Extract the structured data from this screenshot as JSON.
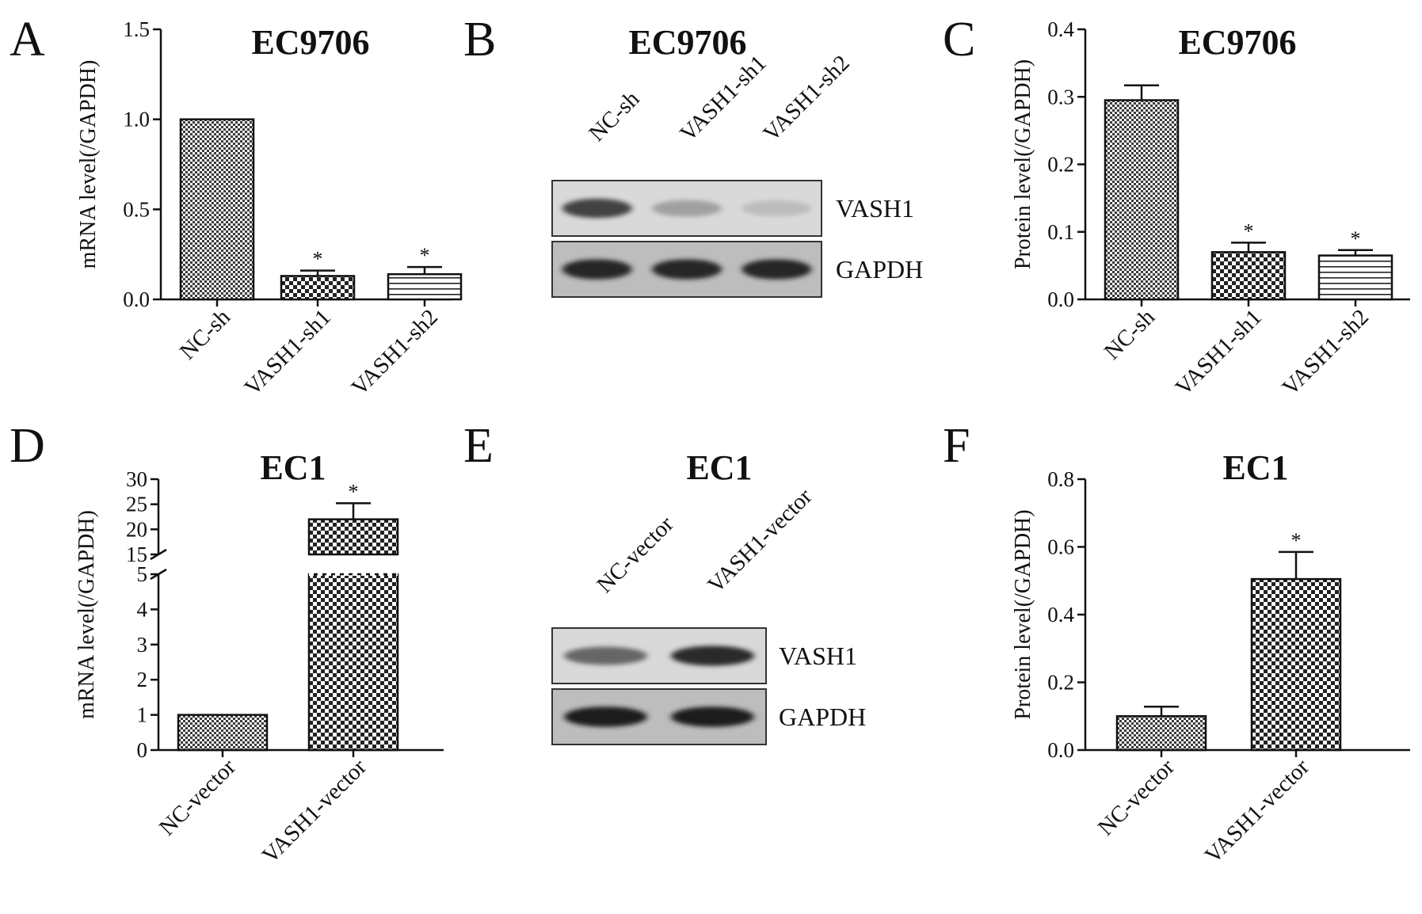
{
  "figure_panels": [
    {
      "letter": "A",
      "title": "EC9706"
    },
    {
      "letter": "B",
      "title": "EC9706"
    },
    {
      "letter": "C",
      "title": "EC9706"
    },
    {
      "letter": "D",
      "title": "EC1"
    },
    {
      "letter": "E",
      "title": "EC1"
    },
    {
      "letter": "F",
      "title": "EC1"
    }
  ],
  "chart_data": [
    {
      "panel": "A",
      "type": "bar",
      "title": "EC9706",
      "ylabel": "mRNA level(/GAPDH)",
      "xlabel": "",
      "categories": [
        "NC-sh",
        "VASH1-sh1",
        "VASH1-sh2"
      ],
      "values": [
        1.0,
        0.13,
        0.14
      ],
      "errors": [
        0,
        0.03,
        0.04
      ],
      "significance": [
        "",
        "*",
        "*"
      ],
      "patterns": [
        "dense-check",
        "check",
        "h-lines"
      ],
      "ylim": [
        0,
        1.5
      ],
      "yticks": [
        0.0,
        0.5,
        1.0,
        1.5
      ],
      "ytick_labels": [
        "0.0",
        "0.5",
        "1.0",
        "1.5"
      ],
      "grid": false
    },
    {
      "panel": "C",
      "type": "bar",
      "title": "EC9706",
      "ylabel": "Protein level(/GAPDH)",
      "xlabel": "",
      "categories": [
        "NC-sh",
        "VASH1-sh1",
        "VASH1-sh2"
      ],
      "values": [
        0.295,
        0.07,
        0.065
      ],
      "errors": [
        0.022,
        0.014,
        0.008
      ],
      "significance": [
        "",
        "*",
        "*"
      ],
      "patterns": [
        "dense-check",
        "check",
        "h-lines"
      ],
      "ylim": [
        0,
        0.4
      ],
      "yticks": [
        0.0,
        0.1,
        0.2,
        0.3,
        0.4
      ],
      "ytick_labels": [
        "0.0",
        "0.1",
        "0.2",
        "0.3",
        "0.4"
      ],
      "grid": false
    },
    {
      "panel": "D",
      "type": "bar",
      "title": "EC1",
      "ylabel": "mRNA level(/GAPDH)",
      "xlabel": "",
      "categories": [
        "NC-vector",
        "VASH1-vector"
      ],
      "values": [
        1.0,
        22.0
      ],
      "errors": [
        0,
        3.2
      ],
      "significance": [
        "",
        "*"
      ],
      "patterns": [
        "dense-check",
        "check"
      ],
      "broken_axis": {
        "lower": {
          "ylim": [
            0,
            5
          ],
          "yticks": [
            0,
            1,
            2,
            3,
            4,
            5
          ],
          "ytick_labels": [
            "0",
            "1",
            "2",
            "3",
            "4",
            "5"
          ]
        },
        "upper": {
          "ylim": [
            15,
            30
          ],
          "yticks": [
            15,
            20,
            25,
            30
          ],
          "ytick_labels": [
            "15",
            "20",
            "25",
            "30"
          ]
        }
      },
      "grid": false
    },
    {
      "panel": "F",
      "type": "bar",
      "title": "EC1",
      "ylabel": "Protein level(/GAPDH)",
      "xlabel": "",
      "categories": [
        "NC-vector",
        "VASH1-vector"
      ],
      "values": [
        0.1,
        0.505
      ],
      "errors": [
        0.028,
        0.08
      ],
      "significance": [
        "",
        "*"
      ],
      "patterns": [
        "dense-check",
        "check"
      ],
      "ylim": [
        0,
        0.8
      ],
      "yticks": [
        0.0,
        0.2,
        0.4,
        0.6,
        0.8
      ],
      "ytick_labels": [
        "0.0",
        "0.2",
        "0.4",
        "0.6",
        "0.8"
      ],
      "grid": false
    }
  ],
  "blots": [
    {
      "panel": "B",
      "title": "EC9706",
      "lanes": [
        "NC-sh",
        "VASH1-sh1",
        "VASH1-sh2"
      ],
      "bands": [
        {
          "label": "VASH1",
          "intensity": [
            0.78,
            0.35,
            0.22
          ]
        },
        {
          "label": "GAPDH",
          "intensity": [
            0.92,
            0.92,
            0.92
          ]
        }
      ]
    },
    {
      "panel": "E",
      "title": "EC1",
      "lanes": [
        "NC-vector",
        "VASH1-vector"
      ],
      "bands": [
        {
          "label": "VASH1",
          "intensity": [
            0.62,
            0.9
          ]
        },
        {
          "label": "GAPDH",
          "intensity": [
            0.95,
            0.95
          ]
        }
      ]
    }
  ]
}
